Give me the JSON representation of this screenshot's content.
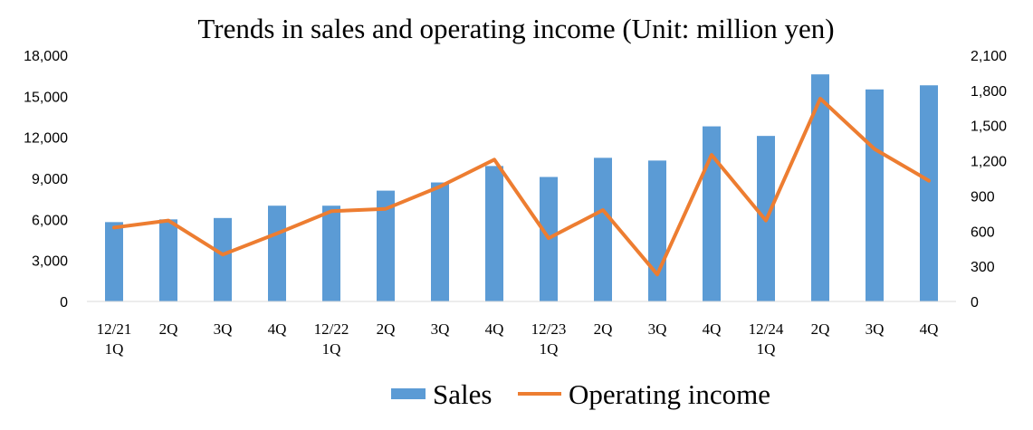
{
  "chart_data": {
    "type": "bar+line",
    "title": "Trends in sales and operating income (Unit: million yen)",
    "categories": [
      [
        "12/21",
        "1Q"
      ],
      [
        "2Q"
      ],
      [
        "3Q"
      ],
      [
        "4Q"
      ],
      [
        "12/22",
        "1Q"
      ],
      [
        "2Q"
      ],
      [
        "3Q"
      ],
      [
        "4Q"
      ],
      [
        "12/23",
        "1Q"
      ],
      [
        "2Q"
      ],
      [
        "3Q"
      ],
      [
        "4Q"
      ],
      [
        "12/24",
        "1Q"
      ],
      [
        "2Q"
      ],
      [
        "3Q"
      ],
      [
        "4Q"
      ]
    ],
    "series": [
      {
        "name": "Sales",
        "type": "bar",
        "axis": "left",
        "color": "#5B9BD5",
        "values": [
          5800,
          6000,
          6100,
          7000,
          7000,
          8100,
          8700,
          9900,
          9100,
          10500,
          10300,
          12800,
          12100,
          16600,
          15500,
          15800
        ]
      },
      {
        "name": "Operating income",
        "type": "line",
        "axis": "right",
        "color": "#ED7D31",
        "values": [
          630,
          690,
          400,
          580,
          770,
          790,
          980,
          1210,
          540,
          780,
          230,
          1250,
          690,
          1730,
          1300,
          1030
        ]
      }
    ],
    "y_left": {
      "min": 0,
      "max": 18000,
      "step": 3000,
      "ticks": [
        "0",
        "3,000",
        "6,000",
        "9,000",
        "12,000",
        "15,000",
        "18,000"
      ]
    },
    "y_right": {
      "min": 0,
      "max": 2100,
      "step": 300,
      "ticks": [
        "0",
        "300",
        "600",
        "900",
        "1,200",
        "1,500",
        "1,800",
        "2,100"
      ]
    },
    "grid": false,
    "legend_position": "bottom"
  }
}
